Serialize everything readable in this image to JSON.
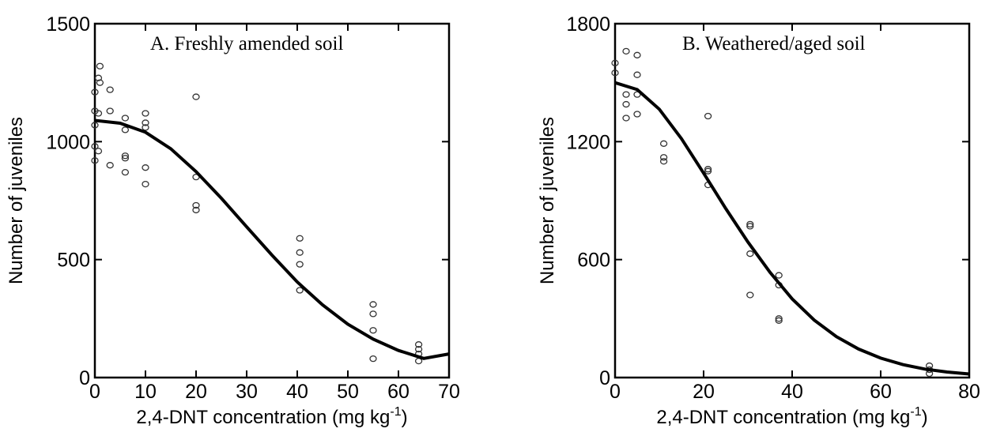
{
  "chart_data": [
    {
      "type": "scatter",
      "title": "A. Freshly amended soil",
      "xlabel": "2,4-DNT concentration (mg kg",
      "xlabel_sup": "-1",
      "xlabel_suffix": ")",
      "ylabel": "Number of juveniles",
      "xlim": [
        0,
        70
      ],
      "ylim": [
        0,
        1500
      ],
      "xticks": [
        0,
        10,
        20,
        30,
        40,
        50,
        60,
        70
      ],
      "yticks": [
        0,
        500,
        1000,
        1500
      ],
      "series": [
        {
          "kind": "points",
          "x": [
            0,
            0,
            0,
            0,
            0,
            0.7,
            0.7,
            0.7,
            1,
            1,
            3,
            3,
            3,
            6,
            6,
            6,
            6,
            6,
            10,
            10,
            10,
            10,
            10,
            20,
            20,
            20,
            20,
            40.5,
            40.5,
            40.5,
            40.5,
            55,
            55,
            55,
            55,
            64,
            64,
            64,
            64
          ],
          "y": [
            1210,
            1130,
            1070,
            980,
            920,
            1270,
            1120,
            960,
            1320,
            1250,
            1220,
            1130,
            900,
            1100,
            1050,
            940,
            930,
            870,
            1120,
            1080,
            1060,
            890,
            820,
            1190,
            850,
            730,
            710,
            590,
            530,
            480,
            370,
            310,
            270,
            200,
            80,
            140,
            120,
            100,
            70
          ]
        },
        {
          "kind": "fit",
          "x": [
            0,
            5,
            10,
            15,
            20,
            25,
            30,
            35,
            40,
            45,
            50,
            55,
            60,
            65,
            70
          ],
          "y": [
            1090,
            1078,
            1040,
            970,
            873,
            760,
            639,
            519,
            405,
            308,
            226,
            163,
            115,
            81,
            100
          ]
        }
      ]
    },
    {
      "type": "scatter",
      "title": "B. Weathered/aged soil",
      "xlabel": "2,4-DNT concentration (mg kg",
      "xlabel_sup": "-1",
      "xlabel_suffix": ")",
      "ylabel": "Number of juveniles",
      "xlim": [
        0,
        80
      ],
      "ylim": [
        0,
        1800
      ],
      "xticks": [
        0,
        20,
        40,
        60,
        80
      ],
      "yticks": [
        0,
        600,
        1200,
        1800
      ],
      "series": [
        {
          "kind": "points",
          "x": [
            0,
            0,
            2.5,
            2.5,
            2.5,
            2.5,
            5,
            5,
            5,
            5,
            11,
            11,
            11,
            21,
            21,
            21,
            21,
            30.5,
            30.5,
            30.5,
            30.5,
            37,
            37,
            37,
            37,
            71,
            71,
            71
          ],
          "y": [
            1600,
            1550,
            1660,
            1440,
            1390,
            1320,
            1640,
            1540,
            1440,
            1340,
            1190,
            1120,
            1100,
            1330,
            1060,
            1050,
            980,
            780,
            770,
            630,
            420,
            520,
            470,
            300,
            290,
            60,
            40,
            20
          ]
        },
        {
          "kind": "fit",
          "x": [
            0,
            5,
            10,
            15,
            20,
            25,
            30,
            35,
            40,
            45,
            50,
            55,
            60,
            65,
            70,
            75,
            80
          ],
          "y": [
            1500,
            1465,
            1365,
            1215,
            1040,
            860,
            690,
            535,
            400,
            292,
            208,
            145,
            99,
            66,
            43,
            28,
            18
          ]
        }
      ]
    }
  ]
}
